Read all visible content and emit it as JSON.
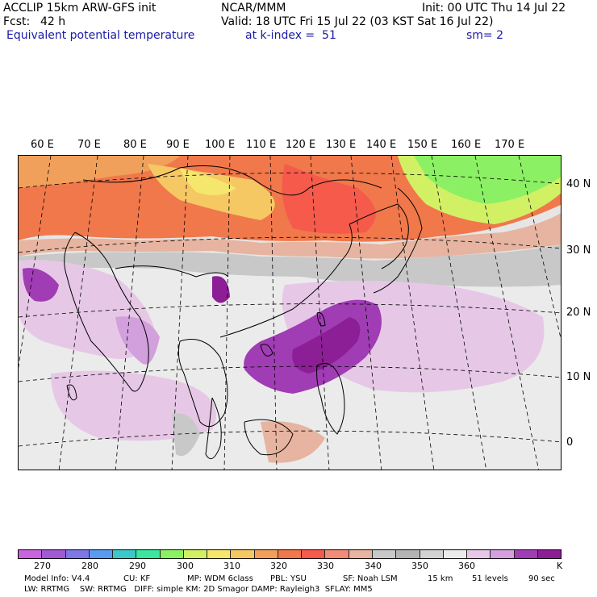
{
  "header": {
    "model_line": "ACCLIP 15km ARW-GFS init",
    "org": "NCAR/MMM",
    "init": "Init: 00 UTC Thu 14 Jul 22",
    "fcst_label": "Fcst:",
    "fcst_value": "42 h",
    "valid": "Valid: 18 UTC Fri 15 Jul 22 (03 KST Sat 16 Jul 22)",
    "field": "Equivalent potential temperature",
    "level": "at k-index =  51",
    "smooth": "sm= 2"
  },
  "map": {
    "lon_labels": [
      "60 E",
      "70 E",
      "80 E",
      "90 E",
      "100 E",
      "110 E",
      "120 E",
      "130 E",
      "140 E",
      "150 E",
      "160 E",
      "170 E"
    ],
    "lat_labels": [
      "40 N",
      "30 N",
      "20 N",
      "10 N",
      "0"
    ]
  },
  "colorbar": {
    "colors": [
      "#c864dc",
      "#a05ad2",
      "#7d78e6",
      "#5a9bf0",
      "#3cc8c8",
      "#3ce6a0",
      "#8cf064",
      "#d2f064",
      "#f5e66e",
      "#f5c864",
      "#f0a05a",
      "#f0784b",
      "#f55a4b",
      "#f08c78",
      "#e6b4a0",
      "#c8c8c8",
      "#b4b4b4",
      "#d2d2d2",
      "#ebebeb",
      "#e6c8e6",
      "#d2a0dc",
      "#a03cb4",
      "#8c1e96"
    ],
    "tick_labels": [
      "270",
      "280",
      "290",
      "300",
      "310",
      "320",
      "330",
      "340",
      "350",
      "360",
      "K"
    ]
  },
  "footer": {
    "line1": [
      "Model Info: V4.4",
      "CU: KF",
      "MP: WDM 6class",
      "PBL: YSU",
      "SF: Noah LSM",
      "15 km",
      "51 levels",
      "90 sec"
    ],
    "line2": "LW: RRTMG    SW: RRTMG   DIFF: simple KM: 2D Smagor DAMP: Rayleigh3  SFLAY: MM5"
  }
}
